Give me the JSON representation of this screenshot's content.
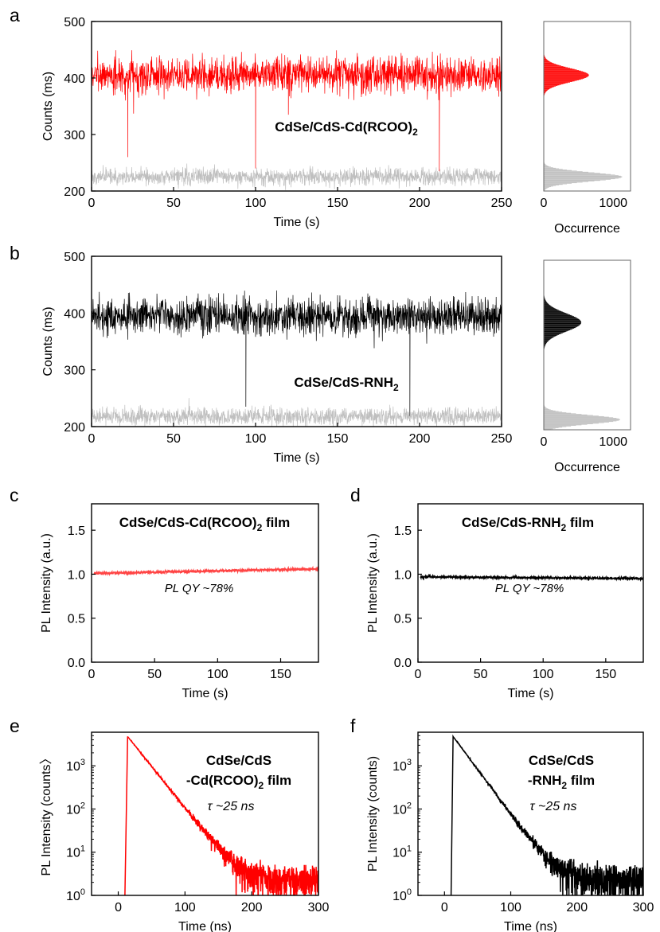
{
  "figure": {
    "panels": [
      "a",
      "b",
      "c",
      "d",
      "e",
      "f"
    ]
  },
  "chart_data": [
    {
      "id": "a",
      "type": "line",
      "panel_label": "a",
      "xlabel": "Time (s)",
      "ylabel": "Counts (ms)",
      "xlim": [
        0,
        250
      ],
      "ylim": [
        200,
        500
      ],
      "xticks": [
        0,
        50,
        100,
        150,
        200,
        250
      ],
      "yticks": [
        200,
        300,
        400,
        500
      ],
      "annotation": "CdSe/CdS-Cd(RCOO)",
      "annotation_sub": "2",
      "series": [
        {
          "role": "signal",
          "color": "#ff0000",
          "mean": 405,
          "spread": 25,
          "dips": [
            [
              22,
              260
            ],
            [
              100,
              240
            ],
            [
              120,
              335
            ],
            [
              212,
              235
            ]
          ]
        },
        {
          "role": "background",
          "color": "#bfbfbf",
          "mean": 225,
          "spread": 12,
          "dips": []
        }
      ],
      "histogram": {
        "xlabel": "Occurrence",
        "xlim": [
          0,
          1250
        ],
        "xticks": [
          0,
          1000
        ],
        "peaks": [
          {
            "color": "#ff0000",
            "center": 405,
            "width": 12,
            "height": 650
          },
          {
            "color": "#bfbfbf",
            "center": 225,
            "width": 8,
            "height": 1130
          }
        ]
      }
    },
    {
      "id": "b",
      "type": "line",
      "panel_label": "b",
      "xlabel": "Time (s)",
      "ylabel": "Counts (ms)",
      "xlim": [
        0,
        250
      ],
      "ylim": [
        200,
        500
      ],
      "xticks": [
        0,
        50,
        100,
        150,
        200,
        250
      ],
      "yticks": [
        200,
        300,
        400,
        500
      ],
      "annotation": "CdSe/CdS-RNH",
      "annotation_sub": "2",
      "series": [
        {
          "role": "signal",
          "color": "#000000",
          "mean": 395,
          "spread": 26,
          "dips": [
            [
              94,
              235
            ],
            [
              194,
              210
            ]
          ]
        },
        {
          "role": "background",
          "color": "#bfbfbf",
          "mean": 218,
          "spread": 12,
          "dips": []
        }
      ],
      "histogram": {
        "xlabel": "Occurrence",
        "xlim": [
          0,
          1250
        ],
        "xticks": [
          0,
          1000
        ],
        "peaks": [
          {
            "color": "#000000",
            "center": 390,
            "width": 16,
            "height": 540
          },
          {
            "color": "#bfbfbf",
            "center": 218,
            "width": 8,
            "height": 1100
          }
        ]
      }
    },
    {
      "id": "c",
      "type": "line",
      "panel_label": "c",
      "xlabel": "Time (s)",
      "ylabel": "PL Intensity (a.u.)",
      "xlim": [
        0,
        180
      ],
      "ylim": [
        0,
        1.8
      ],
      "xticks": [
        0,
        50,
        100,
        150
      ],
      "yticks": [
        0.0,
        0.5,
        1.0,
        1.5
      ],
      "title": "CdSe/CdS-Cd(RCOO)",
      "title_sub": "2",
      "title_suffix": " film",
      "note": "PL QY ~78%",
      "series": [
        {
          "color": "#ff4444",
          "start": 1.01,
          "end": 1.06,
          "spread": 0.01
        }
      ]
    },
    {
      "id": "d",
      "type": "line",
      "panel_label": "d",
      "xlabel": "Time (s)",
      "ylabel": "PL Intensity (a.u.)",
      "xlim": [
        0,
        180
      ],
      "ylim": [
        0,
        1.8
      ],
      "xticks": [
        0,
        50,
        100,
        150
      ],
      "yticks": [
        0.0,
        0.5,
        1.0,
        1.5
      ],
      "title": "CdSe/CdS-RNH",
      "title_sub": "2",
      "title_suffix": " film",
      "note": "PL QY ~78%",
      "series": [
        {
          "color": "#000000",
          "start": 0.97,
          "end": 0.95,
          "spread": 0.008
        }
      ]
    },
    {
      "id": "e",
      "type": "line",
      "panel_label": "e",
      "xlabel": "Time (ns)",
      "ylabel": "PL Intensity (counts〉",
      "xlim": [
        -40,
        300
      ],
      "ylim": [
        1,
        6000
      ],
      "yscale": "log",
      "xticks": [
        0,
        100,
        200,
        300
      ],
      "yticks": [
        1,
        10,
        100,
        1000
      ],
      "title_line1": "CdSe/CdS",
      "title_line2": "-Cd(RCOO)",
      "title_sub": "2",
      "title_suffix": " film",
      "note": "τ ~25 ns",
      "series": [
        {
          "color": "#ff0000",
          "rise_start": 10,
          "peak_time": 14,
          "peak": 4800,
          "tau": 22.5
        }
      ]
    },
    {
      "id": "f",
      "type": "line",
      "panel_label": "f",
      "xlabel": "Time (ns)",
      "ylabel": "PL Intensity (counts)",
      "xlim": [
        -40,
        300
      ],
      "ylim": [
        1,
        6000
      ],
      "yscale": "log",
      "xticks": [
        0,
        100,
        200,
        300
      ],
      "yticks": [
        1,
        10,
        100,
        1000
      ],
      "title_line1": "CdSe/CdS",
      "title_line2": "-RNH",
      "title_sub": "2",
      "title_suffix": " film",
      "note": "τ ~25 ns",
      "series": [
        {
          "color": "#000000",
          "rise_start": 10,
          "peak_time": 13,
          "peak": 4800,
          "tau": 21
        }
      ]
    }
  ]
}
